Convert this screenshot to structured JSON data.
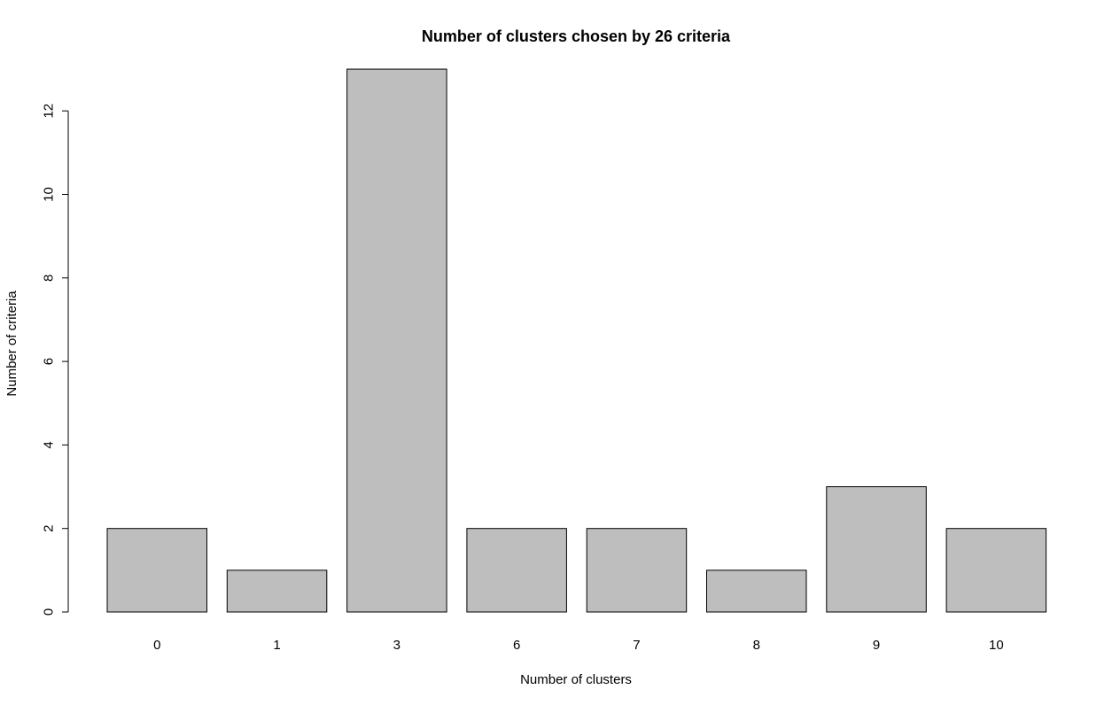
{
  "chart_data": {
    "type": "bar",
    "title": "Number of clusters chosen by 26 criteria",
    "xlabel": "Number of clusters",
    "ylabel": "Number of criteria",
    "categories": [
      "0",
      "1",
      "3",
      "6",
      "7",
      "8",
      "9",
      "10"
    ],
    "values": [
      2,
      1,
      13,
      2,
      2,
      1,
      3,
      2
    ],
    "ylim": [
      0,
      13
    ],
    "yticks": [
      0,
      2,
      4,
      6,
      8,
      10,
      12
    ],
    "grid": false,
    "bar_color": "#bebebe",
    "edge_color": "#000000"
  }
}
